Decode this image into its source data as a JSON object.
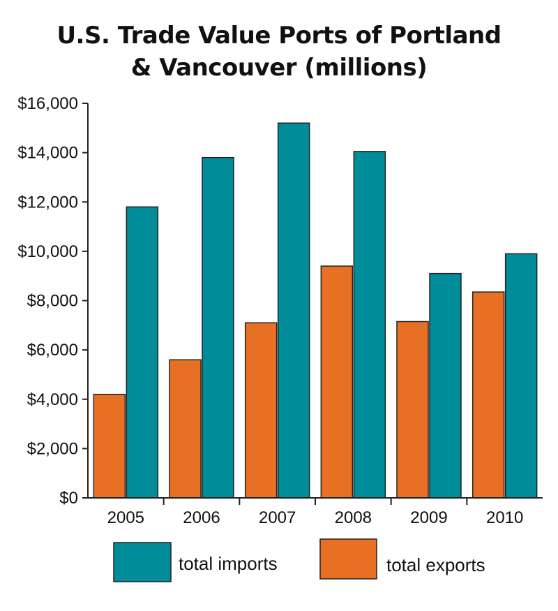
{
  "title_line1": "U.S. Trade Value Ports of Portland",
  "title_line2": "& Vancouver (millions)",
  "chart_data": {
    "type": "bar",
    "title": "U.S. Trade Value Ports of Portland & Vancouver (millions)",
    "categories": [
      "2005",
      "2006",
      "2007",
      "2008",
      "2009",
      "2010"
    ],
    "series": [
      {
        "name": "total exports",
        "color": "#e87024",
        "values": [
          4200,
          5600,
          7100,
          9400,
          7150,
          8350
        ]
      },
      {
        "name": "total imports",
        "color": "#008c99",
        "values": [
          11800,
          13800,
          15200,
          14050,
          9100,
          9900
        ]
      }
    ],
    "ylim": [
      0,
      16000
    ],
    "yticks": [
      0,
      2000,
      4000,
      6000,
      8000,
      10000,
      12000,
      14000,
      16000
    ],
    "ytick_labels": [
      "$0",
      "$2,000",
      "$4,000",
      "$6,000",
      "$8,000",
      "$10,000",
      "$12,000",
      "$14,000",
      "$16,000"
    ],
    "grid": false,
    "legend": [
      {
        "label": "total imports",
        "color": "#008c99"
      },
      {
        "label": "total exports",
        "color": "#e87024"
      }
    ],
    "legend_position": "bottom"
  }
}
